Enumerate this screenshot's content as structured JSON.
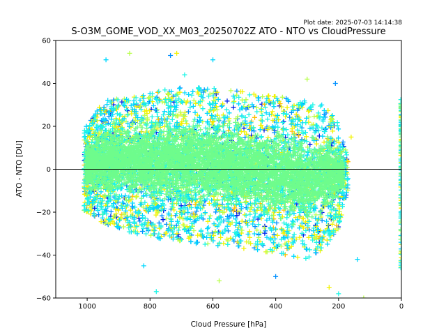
{
  "chart_data": {
    "type": "scatter",
    "title": "S-O3M_GOME_VOD_XX_M03_20250702Z ATO - NTO vs CloudPressure",
    "plot_date": "Plot date: 2025-07-03 14:14:38",
    "xlabel": "Cloud Pressure [hPa]",
    "ylabel": "ATO - NTO [DU]",
    "xlim": [
      1100,
      0
    ],
    "ylim": [
      -60,
      60
    ],
    "x_ticks": [
      1000,
      800,
      600,
      400,
      200,
      0
    ],
    "y_ticks": [
      -60,
      -40,
      -20,
      0,
      20,
      40,
      60
    ],
    "reference_line_y": 0,
    "marker": "+",
    "grid": false,
    "legend": "none",
    "colors": {
      "core": "#6efc8c",
      "cyan": "#1ef5e6",
      "aqua": "#00d8ff",
      "blue": "#0090ff",
      "deep_blue": "#0020e8",
      "yellow": "#f2f200",
      "lime": "#b8ff4a",
      "orange": "#ffbe00",
      "reference_line": "#000000"
    },
    "density_envelope": {
      "x": [
        1000,
        950,
        900,
        850,
        800,
        750,
        700,
        650,
        600,
        550,
        500,
        450,
        400,
        350,
        300,
        250,
        200,
        170
      ],
      "y_upper": [
        20,
        32,
        33,
        35,
        36,
        37,
        38,
        38,
        38,
        37,
        36,
        35,
        34,
        33,
        32,
        30,
        22,
        5
      ],
      "y_lower": [
        -20,
        -25,
        -28,
        -30,
        -31,
        -33,
        -34,
        -35,
        -36,
        -36,
        -37,
        -38,
        -40,
        -42,
        -42,
        -38,
        -28,
        -10
      ]
    },
    "outliers": [
      {
        "x": 940,
        "y": 51
      },
      {
        "x": 865,
        "y": 54
      },
      {
        "x": 735,
        "y": 53
      },
      {
        "x": 715,
        "y": 54
      },
      {
        "x": 690,
        "y": 44
      },
      {
        "x": 600,
        "y": 51
      },
      {
        "x": 300,
        "y": 42
      },
      {
        "x": 210,
        "y": 40
      },
      {
        "x": 160,
        "y": 15
      },
      {
        "x": 780,
        "y": -57
      },
      {
        "x": 820,
        "y": -45
      },
      {
        "x": 580,
        "y": -52
      },
      {
        "x": 400,
        "y": -50
      },
      {
        "x": 230,
        "y": -55
      },
      {
        "x": 200,
        "y": -58
      },
      {
        "x": 140,
        "y": -42
      },
      {
        "x": 120,
        "y": -60
      }
    ],
    "edge_cluster": {
      "x": 0,
      "y_range": [
        -46,
        33
      ]
    }
  }
}
